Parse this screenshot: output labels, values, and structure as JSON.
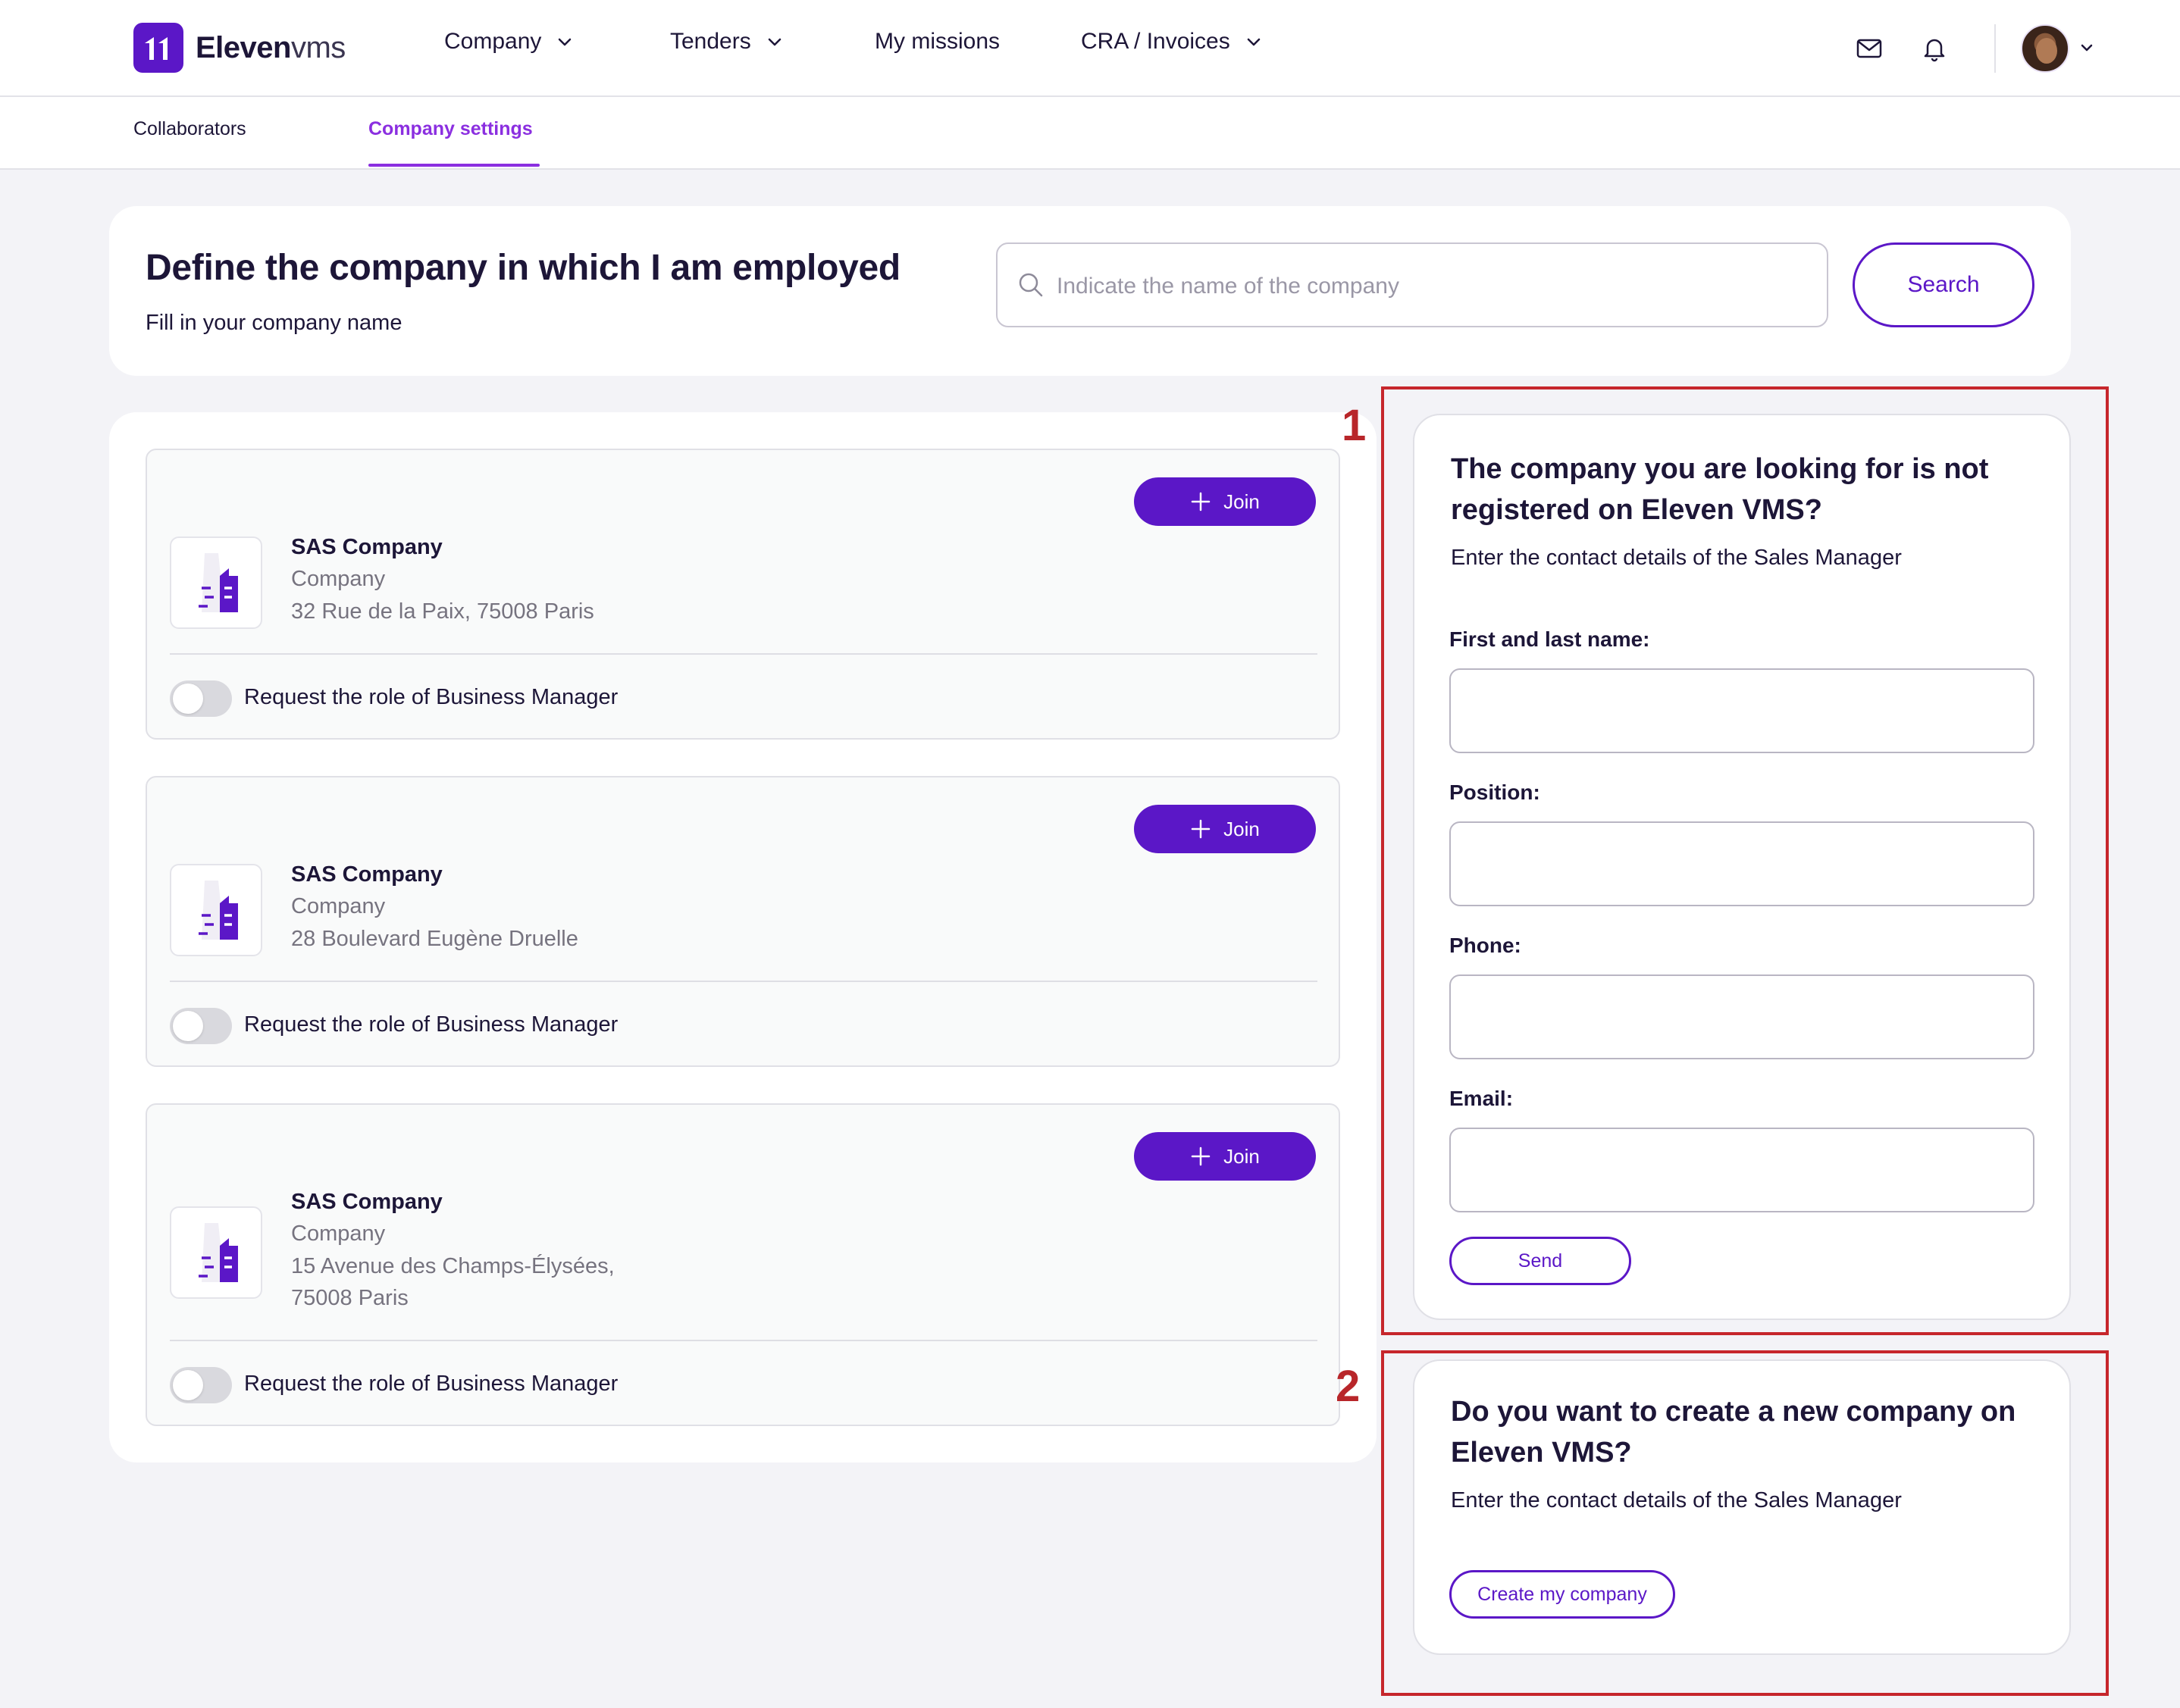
{
  "header": {
    "logo_bold": "Eleven",
    "logo_light": "vms",
    "nav": [
      {
        "label": "Company",
        "has_dropdown": true
      },
      {
        "label": "Tenders",
        "has_dropdown": true
      },
      {
        "label": "My missions",
        "has_dropdown": false
      },
      {
        "label": "CRA / Invoices",
        "has_dropdown": true
      }
    ],
    "icons": [
      "mail-icon",
      "bell-icon",
      "avatar",
      "chevron-down-icon"
    ]
  },
  "subnav": {
    "tabs": [
      {
        "label": "Collaborators",
        "active": false
      },
      {
        "label": "Company settings",
        "active": true
      }
    ]
  },
  "search": {
    "title": "Define the company in which I am employed",
    "subtitle": "Fill in your company name",
    "placeholder": "Indicate the name of the company",
    "value": "",
    "button": "Search"
  },
  "companies": [
    {
      "name": "SAS Company",
      "type": "Company",
      "address_lines": [
        "32 Rue de la Paix, 75008 Paris"
      ],
      "join_label": "Join",
      "toggle_label": "Request the role of Business Manager",
      "toggle_on": false
    },
    {
      "name": "SAS Company",
      "type": "Company",
      "address_lines": [
        "28 Boulevard Eugène Druelle"
      ],
      "join_label": "Join",
      "toggle_label": "Request the role of Business Manager",
      "toggle_on": false
    },
    {
      "name": "SAS Company",
      "type": "Company",
      "address_lines": [
        "15 Avenue des Champs-Élysées,",
        "75008 Paris"
      ],
      "join_label": "Join",
      "toggle_label": "Request the role of Business Manager",
      "toggle_on": false
    }
  ],
  "not_registered": {
    "annotation": "1",
    "title": "The company you are looking for is not registered on Eleven VMS?",
    "subtitle": "Enter the contact details of the Sales Manager",
    "fields": [
      {
        "label": "First and last name:",
        "value": ""
      },
      {
        "label": "Position:",
        "value": ""
      },
      {
        "label": "Phone:",
        "value": ""
      },
      {
        "label": "Email:",
        "value": ""
      }
    ],
    "send_label": "Send"
  },
  "create_company": {
    "annotation": "2",
    "title": "Do you want to create a new company on Eleven VMS?",
    "subtitle": "Enter the contact details of the Sales Manager",
    "button": "Create my company"
  },
  "colors": {
    "brand": "#5b17c7",
    "active_tab": "#8b2fe0",
    "annotation": "#c6262c",
    "background": "#f3f3f7"
  }
}
